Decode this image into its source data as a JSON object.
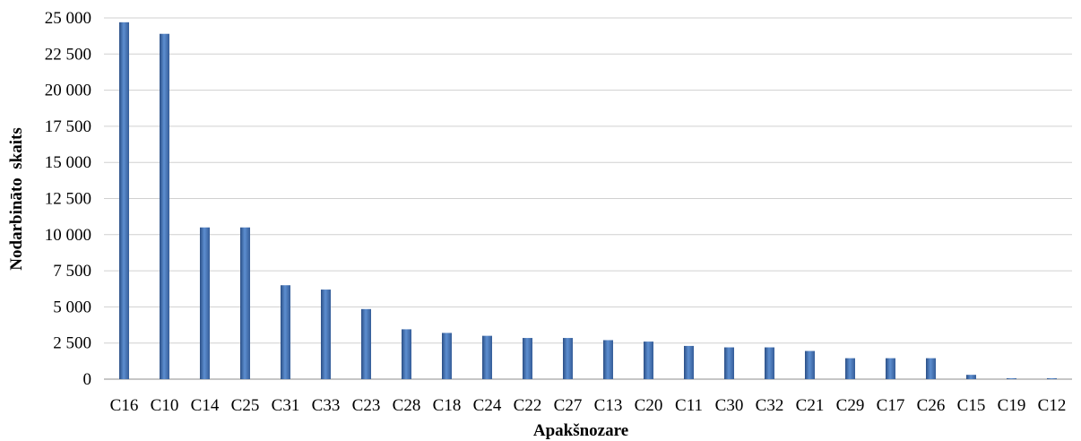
{
  "chart_data": {
    "type": "bar",
    "title": "",
    "xlabel": "Apakšnozare",
    "ylabel": "Nodarbināto  skaits",
    "ylim": [
      0,
      25000
    ],
    "grid": true,
    "bar_color": "#4f81bd",
    "y_ticks": [
      {
        "value": 0,
        "label": "0"
      },
      {
        "value": 2500,
        "label": "2 500"
      },
      {
        "value": 5000,
        "label": "5 000"
      },
      {
        "value": 7500,
        "label": "7 500"
      },
      {
        "value": 10000,
        "label": "10 000"
      },
      {
        "value": 12500,
        "label": "12 500"
      },
      {
        "value": 15000,
        "label": "15 000"
      },
      {
        "value": 17500,
        "label": "17 500"
      },
      {
        "value": 20000,
        "label": "20 000"
      },
      {
        "value": 22500,
        "label": "22 500"
      },
      {
        "value": 25000,
        "label": "25 000"
      }
    ],
    "categories": [
      "C16",
      "C10",
      "C14",
      "C25",
      "C31",
      "C33",
      "C23",
      "C28",
      "C18",
      "C24",
      "C22",
      "C27",
      "C13",
      "C20",
      "C11",
      "C30",
      "C32",
      "C21",
      "C29",
      "C17",
      "C26",
      "C15",
      "C19",
      "C12"
    ],
    "values": [
      24700,
      23900,
      10500,
      10500,
      6500,
      6200,
      4850,
      3450,
      3200,
      3000,
      2850,
      2850,
      2700,
      2600,
      2300,
      2200,
      2200,
      1950,
      1450,
      1450,
      1450,
      300,
      60,
      60
    ]
  }
}
